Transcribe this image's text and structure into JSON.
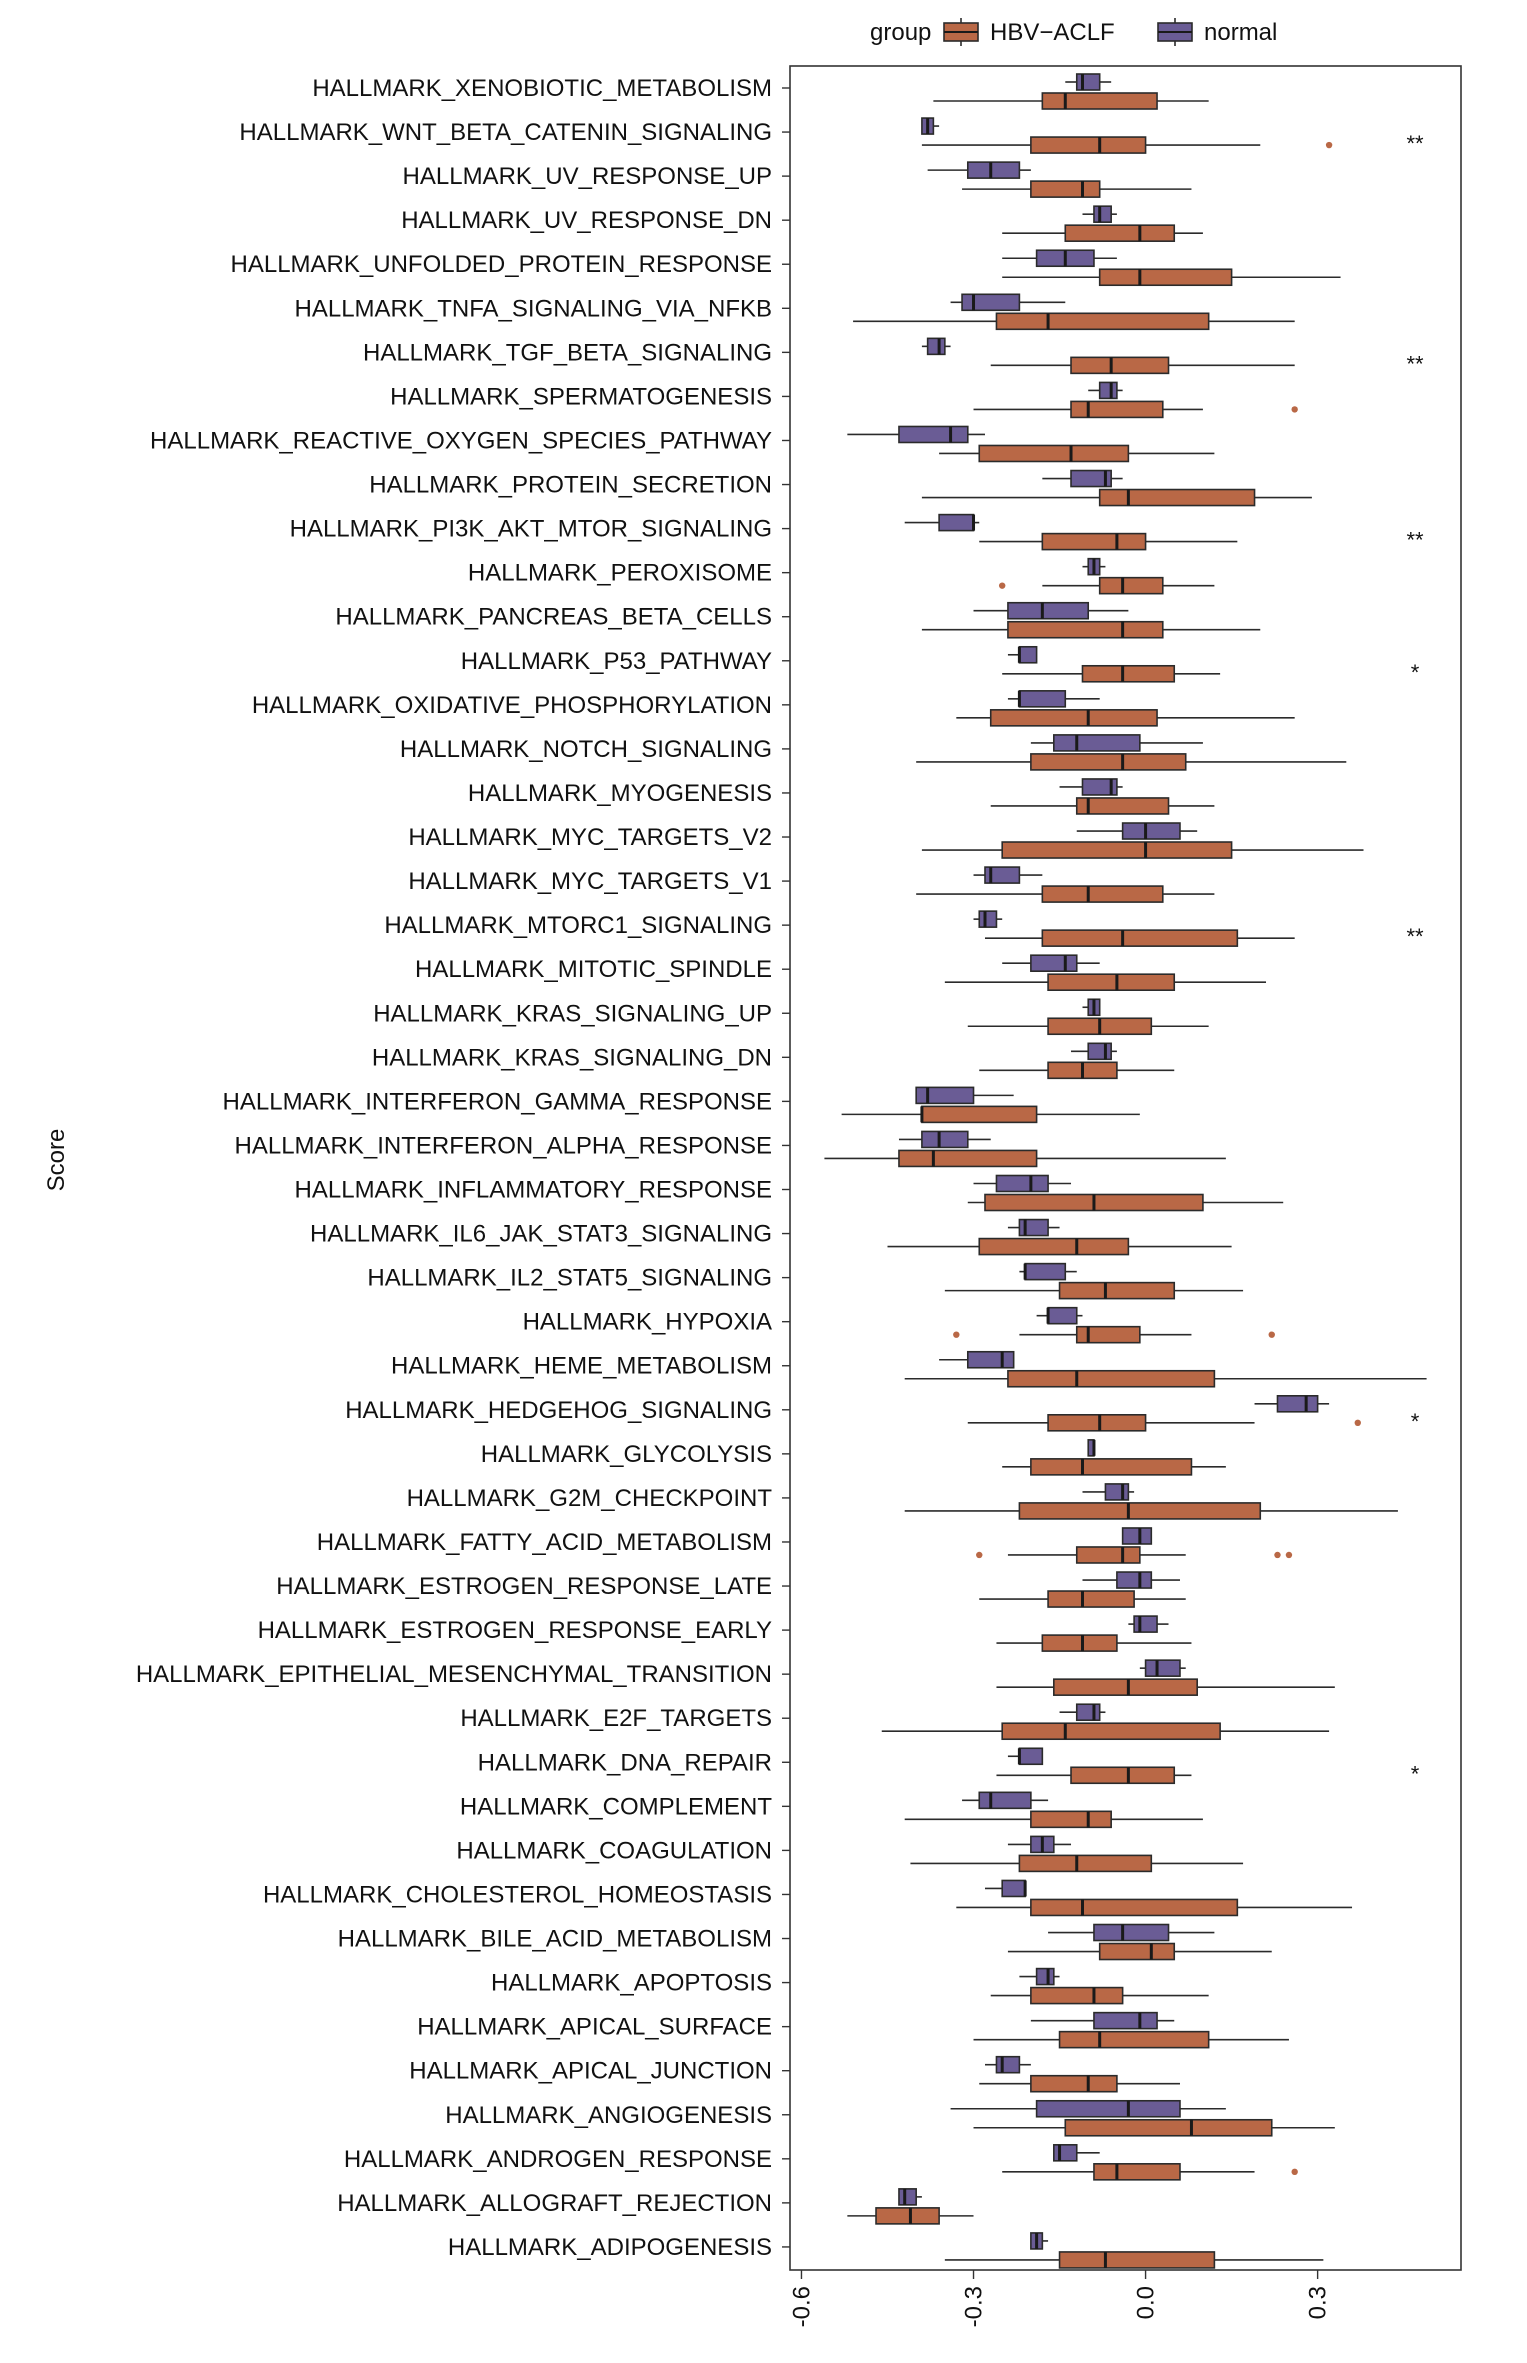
{
  "chart_data": {
    "type": "boxplot",
    "orientation": "horizontal",
    "xlabel": "Score",
    "xlim": [
      -0.62,
      0.55
    ],
    "xticks": [
      -0.6,
      -0.3,
      0.0,
      0.3
    ],
    "xtick_labels": [
      "-0.6",
      "-0.3",
      "0.0",
      "0.3"
    ],
    "legend": {
      "title": "group",
      "position": "top",
      "entries": [
        {
          "name": "HBV−ACLF",
          "color": "#b96846"
        },
        {
          "name": "normal",
          "color": "#6a5c95"
        }
      ]
    },
    "categories": [
      {
        "name": "HALLMARK_XENOBIOTIC_METABOLISM",
        "sig": "",
        "normal": [
          -0.14,
          -0.12,
          -0.11,
          -0.08,
          -0.06
        ],
        "aclf": [
          -0.37,
          -0.18,
          -0.14,
          0.02,
          0.11
        ],
        "outliers_normal": [],
        "outliers_aclf": []
      },
      {
        "name": "HALLMARK_WNT_BETA_CATENIN_SIGNALING",
        "sig": "**",
        "normal": [
          -0.39,
          -0.39,
          -0.38,
          -0.37,
          -0.36
        ],
        "aclf": [
          -0.39,
          -0.2,
          -0.08,
          0.0,
          0.2
        ],
        "outliers_normal": [],
        "outliers_aclf": [
          0.32
        ]
      },
      {
        "name": "HALLMARK_UV_RESPONSE_UP",
        "sig": "",
        "normal": [
          -0.38,
          -0.31,
          -0.27,
          -0.22,
          -0.2
        ],
        "aclf": [
          -0.32,
          -0.2,
          -0.11,
          -0.08,
          0.08
        ],
        "outliers_normal": [],
        "outliers_aclf": []
      },
      {
        "name": "HALLMARK_UV_RESPONSE_DN",
        "sig": "",
        "normal": [
          -0.11,
          -0.09,
          -0.08,
          -0.06,
          -0.05
        ],
        "aclf": [
          -0.25,
          -0.14,
          -0.01,
          0.05,
          0.1
        ],
        "outliers_normal": [],
        "outliers_aclf": []
      },
      {
        "name": "HALLMARK_UNFOLDED_PROTEIN_RESPONSE",
        "sig": "",
        "normal": [
          -0.25,
          -0.19,
          -0.14,
          -0.09,
          -0.05
        ],
        "aclf": [
          -0.25,
          -0.08,
          -0.01,
          0.15,
          0.34
        ],
        "outliers_normal": [],
        "outliers_aclf": []
      },
      {
        "name": "HALLMARK_TNFA_SIGNALING_VIA_NFKB",
        "sig": "",
        "normal": [
          -0.34,
          -0.32,
          -0.3,
          -0.22,
          -0.14
        ],
        "aclf": [
          -0.51,
          -0.26,
          -0.17,
          0.11,
          0.26
        ],
        "outliers_normal": [],
        "outliers_aclf": []
      },
      {
        "name": "HALLMARK_TGF_BETA_SIGNALING",
        "sig": "**",
        "normal": [
          -0.39,
          -0.38,
          -0.36,
          -0.35,
          -0.34
        ],
        "aclf": [
          -0.27,
          -0.13,
          -0.06,
          0.04,
          0.26
        ],
        "outliers_normal": [],
        "outliers_aclf": []
      },
      {
        "name": "HALLMARK_SPERMATOGENESIS",
        "sig": "",
        "normal": [
          -0.1,
          -0.08,
          -0.06,
          -0.05,
          -0.04
        ],
        "aclf": [
          -0.3,
          -0.13,
          -0.1,
          0.03,
          0.1
        ],
        "outliers_normal": [],
        "outliers_aclf": [
          0.26
        ]
      },
      {
        "name": "HALLMARK_REACTIVE_OXYGEN_SPECIES_PATHWAY",
        "sig": "",
        "normal": [
          -0.52,
          -0.43,
          -0.34,
          -0.31,
          -0.28
        ],
        "aclf": [
          -0.36,
          -0.29,
          -0.13,
          -0.03,
          0.12
        ],
        "outliers_normal": [],
        "outliers_aclf": []
      },
      {
        "name": "HALLMARK_PROTEIN_SECRETION",
        "sig": "",
        "normal": [
          -0.18,
          -0.13,
          -0.07,
          -0.06,
          -0.04
        ],
        "aclf": [
          -0.39,
          -0.08,
          -0.03,
          0.19,
          0.29
        ],
        "outliers_normal": [],
        "outliers_aclf": []
      },
      {
        "name": "HALLMARK_PI3K_AKT_MTOR_SIGNALING",
        "sig": "**",
        "normal": [
          -0.42,
          -0.36,
          -0.3,
          -0.3,
          -0.29
        ],
        "aclf": [
          -0.29,
          -0.18,
          -0.05,
          0.0,
          0.16
        ],
        "outliers_normal": [],
        "outliers_aclf": []
      },
      {
        "name": "HALLMARK_PEROXISOME",
        "sig": "",
        "normal": [
          -0.11,
          -0.1,
          -0.09,
          -0.08,
          -0.07
        ],
        "aclf": [
          -0.18,
          -0.08,
          -0.04,
          0.03,
          0.12
        ],
        "outliers_normal": [],
        "outliers_aclf": [
          -0.25
        ]
      },
      {
        "name": "HALLMARK_PANCREAS_BETA_CELLS",
        "sig": "",
        "normal": [
          -0.3,
          -0.24,
          -0.18,
          -0.1,
          -0.03
        ],
        "aclf": [
          -0.39,
          -0.24,
          -0.04,
          0.03,
          0.2
        ],
        "outliers_normal": [],
        "outliers_aclf": []
      },
      {
        "name": "HALLMARK_P53_PATHWAY",
        "sig": "*",
        "normal": [
          -0.24,
          -0.22,
          -0.22,
          -0.19,
          -0.19
        ],
        "aclf": [
          -0.25,
          -0.11,
          -0.04,
          0.05,
          0.13
        ],
        "outliers_normal": [],
        "outliers_aclf": []
      },
      {
        "name": "HALLMARK_OXIDATIVE_PHOSPHORYLATION",
        "sig": "",
        "normal": [
          -0.24,
          -0.22,
          -0.22,
          -0.14,
          -0.08
        ],
        "aclf": [
          -0.33,
          -0.27,
          -0.1,
          0.02,
          0.26
        ],
        "outliers_normal": [],
        "outliers_aclf": []
      },
      {
        "name": "HALLMARK_NOTCH_SIGNALING",
        "sig": "",
        "normal": [
          -0.2,
          -0.16,
          -0.12,
          -0.01,
          0.1
        ],
        "aclf": [
          -0.4,
          -0.2,
          -0.04,
          0.07,
          0.35
        ],
        "outliers_normal": [],
        "outliers_aclf": []
      },
      {
        "name": "HALLMARK_MYOGENESIS",
        "sig": "",
        "normal": [
          -0.15,
          -0.11,
          -0.06,
          -0.05,
          -0.04
        ],
        "aclf": [
          -0.27,
          -0.12,
          -0.1,
          0.04,
          0.12
        ],
        "outliers_normal": [],
        "outliers_aclf": []
      },
      {
        "name": "HALLMARK_MYC_TARGETS_V2",
        "sig": "",
        "normal": [
          -0.12,
          -0.04,
          0.0,
          0.06,
          0.09
        ],
        "aclf": [
          -0.39,
          -0.25,
          0.0,
          0.15,
          0.38
        ],
        "outliers_normal": [],
        "outliers_aclf": []
      },
      {
        "name": "HALLMARK_MYC_TARGETS_V1",
        "sig": "",
        "normal": [
          -0.3,
          -0.28,
          -0.27,
          -0.22,
          -0.18
        ],
        "aclf": [
          -0.4,
          -0.18,
          -0.1,
          0.03,
          0.12
        ],
        "outliers_normal": [],
        "outliers_aclf": []
      },
      {
        "name": "HALLMARK_MTORC1_SIGNALING",
        "sig": "**",
        "normal": [
          -0.3,
          -0.29,
          -0.28,
          -0.26,
          -0.25
        ],
        "aclf": [
          -0.28,
          -0.18,
          -0.04,
          0.16,
          0.26
        ],
        "outliers_normal": [],
        "outliers_aclf": []
      },
      {
        "name": "HALLMARK_MITOTIC_SPINDLE",
        "sig": "",
        "normal": [
          -0.25,
          -0.2,
          -0.14,
          -0.12,
          -0.08
        ],
        "aclf": [
          -0.35,
          -0.17,
          -0.05,
          0.05,
          0.21
        ],
        "outliers_normal": [],
        "outliers_aclf": []
      },
      {
        "name": "HALLMARK_KRAS_SIGNALING_UP",
        "sig": "",
        "normal": [
          -0.11,
          -0.1,
          -0.09,
          -0.08,
          -0.08
        ],
        "aclf": [
          -0.31,
          -0.17,
          -0.08,
          0.01,
          0.11
        ],
        "outliers_normal": [],
        "outliers_aclf": []
      },
      {
        "name": "HALLMARK_KRAS_SIGNALING_DN",
        "sig": "",
        "normal": [
          -0.13,
          -0.1,
          -0.07,
          -0.06,
          -0.05
        ],
        "aclf": [
          -0.29,
          -0.17,
          -0.11,
          -0.05,
          0.05
        ],
        "outliers_normal": [],
        "outliers_aclf": []
      },
      {
        "name": "HALLMARK_INTERFERON_GAMMA_RESPONSE",
        "sig": "",
        "normal": [
          -0.4,
          -0.4,
          -0.38,
          -0.3,
          -0.23
        ],
        "aclf": [
          -0.53,
          -0.39,
          -0.39,
          -0.19,
          -0.01
        ],
        "outliers_normal": [],
        "outliers_aclf": []
      },
      {
        "name": "HALLMARK_INTERFERON_ALPHA_RESPONSE",
        "sig": "",
        "normal": [
          -0.43,
          -0.39,
          -0.36,
          -0.31,
          -0.27
        ],
        "aclf": [
          -0.56,
          -0.43,
          -0.37,
          -0.19,
          0.14
        ],
        "outliers_normal": [],
        "outliers_aclf": []
      },
      {
        "name": "HALLMARK_INFLAMMATORY_RESPONSE",
        "sig": "",
        "normal": [
          -0.3,
          -0.26,
          -0.2,
          -0.17,
          -0.13
        ],
        "aclf": [
          -0.31,
          -0.28,
          -0.09,
          0.1,
          0.24
        ],
        "outliers_normal": [],
        "outliers_aclf": []
      },
      {
        "name": "HALLMARK_IL6_JAK_STAT3_SIGNALING",
        "sig": "",
        "normal": [
          -0.24,
          -0.22,
          -0.21,
          -0.17,
          -0.15
        ],
        "aclf": [
          -0.45,
          -0.29,
          -0.12,
          -0.03,
          0.15
        ],
        "outliers_normal": [],
        "outliers_aclf": []
      },
      {
        "name": "HALLMARK_IL2_STAT5_SIGNALING",
        "sig": "",
        "normal": [
          -0.22,
          -0.21,
          -0.21,
          -0.14,
          -0.12
        ],
        "aclf": [
          -0.35,
          -0.15,
          -0.07,
          0.05,
          0.17
        ],
        "outliers_normal": [],
        "outliers_aclf": []
      },
      {
        "name": "HALLMARK_HYPOXIA",
        "sig": "",
        "normal": [
          -0.19,
          -0.17,
          -0.17,
          -0.12,
          -0.11
        ],
        "aclf": [
          -0.22,
          -0.12,
          -0.1,
          -0.01,
          0.08
        ],
        "outliers_normal": [],
        "outliers_aclf": [
          -0.33,
          0.22
        ]
      },
      {
        "name": "HALLMARK_HEME_METABOLISM",
        "sig": "",
        "normal": [
          -0.36,
          -0.31,
          -0.25,
          -0.23,
          -0.23
        ],
        "aclf": [
          -0.42,
          -0.24,
          -0.12,
          0.12,
          0.49
        ],
        "outliers_normal": [],
        "outliers_aclf": []
      },
      {
        "name": "HALLMARK_HEDGEHOG_SIGNALING",
        "sig": "*",
        "normal": [
          0.19,
          0.23,
          0.28,
          0.3,
          0.32
        ],
        "aclf": [
          -0.31,
          -0.17,
          -0.08,
          0.0,
          0.19
        ],
        "outliers_normal": [],
        "outliers_aclf": [
          0.37
        ]
      },
      {
        "name": "HALLMARK_GLYCOLYSIS",
        "sig": "",
        "normal": [
          -0.1,
          -0.1,
          -0.09,
          -0.09,
          -0.09
        ],
        "aclf": [
          -0.25,
          -0.2,
          -0.11,
          0.08,
          0.14
        ],
        "outliers_normal": [],
        "outliers_aclf": []
      },
      {
        "name": "HALLMARK_G2M_CHECKPOINT",
        "sig": "",
        "normal": [
          -0.11,
          -0.07,
          -0.04,
          -0.03,
          -0.02
        ],
        "aclf": [
          -0.42,
          -0.22,
          -0.03,
          0.2,
          0.44
        ],
        "outliers_normal": [],
        "outliers_aclf": []
      },
      {
        "name": "HALLMARK_FATTY_ACID_METABOLISM",
        "sig": "",
        "normal": [
          -0.04,
          -0.04,
          -0.01,
          0.01,
          0.01
        ],
        "aclf": [
          -0.24,
          -0.12,
          -0.04,
          -0.01,
          0.07
        ],
        "outliers_normal": [],
        "outliers_aclf": [
          -0.29,
          0.23,
          0.25
        ]
      },
      {
        "name": "HALLMARK_ESTROGEN_RESPONSE_LATE",
        "sig": "",
        "normal": [
          -0.11,
          -0.05,
          -0.01,
          0.01,
          0.06
        ],
        "aclf": [
          -0.29,
          -0.17,
          -0.11,
          -0.02,
          0.07
        ],
        "outliers_normal": [],
        "outliers_aclf": []
      },
      {
        "name": "HALLMARK_ESTROGEN_RESPONSE_EARLY",
        "sig": "",
        "normal": [
          -0.03,
          -0.02,
          -0.01,
          0.02,
          0.04
        ],
        "aclf": [
          -0.26,
          -0.18,
          -0.11,
          -0.05,
          0.08
        ],
        "outliers_normal": [],
        "outliers_aclf": []
      },
      {
        "name": "HALLMARK_EPITHELIAL_MESENCHYMAL_TRANSITION",
        "sig": "",
        "normal": [
          -0.01,
          0.0,
          0.02,
          0.06,
          0.07
        ],
        "aclf": [
          -0.26,
          -0.16,
          -0.03,
          0.09,
          0.33
        ],
        "outliers_normal": [],
        "outliers_aclf": []
      },
      {
        "name": "HALLMARK_E2F_TARGETS",
        "sig": "",
        "normal": [
          -0.15,
          -0.12,
          -0.09,
          -0.08,
          -0.07
        ],
        "aclf": [
          -0.46,
          -0.25,
          -0.14,
          0.13,
          0.32
        ],
        "outliers_normal": [],
        "outliers_aclf": []
      },
      {
        "name": "HALLMARK_DNA_REPAIR",
        "sig": "*",
        "normal": [
          -0.24,
          -0.22,
          -0.22,
          -0.18,
          -0.18
        ],
        "aclf": [
          -0.26,
          -0.13,
          -0.03,
          0.05,
          0.08
        ],
        "outliers_normal": [],
        "outliers_aclf": []
      },
      {
        "name": "HALLMARK_COMPLEMENT",
        "sig": "",
        "normal": [
          -0.32,
          -0.29,
          -0.27,
          -0.2,
          -0.17
        ],
        "aclf": [
          -0.42,
          -0.2,
          -0.1,
          -0.06,
          0.1
        ],
        "outliers_normal": [],
        "outliers_aclf": []
      },
      {
        "name": "HALLMARK_COAGULATION",
        "sig": "",
        "normal": [
          -0.24,
          -0.2,
          -0.18,
          -0.16,
          -0.13
        ],
        "aclf": [
          -0.41,
          -0.22,
          -0.12,
          0.01,
          0.17
        ],
        "outliers_normal": [],
        "outliers_aclf": []
      },
      {
        "name": "HALLMARK_CHOLESTEROL_HOMEOSTASIS",
        "sig": "",
        "normal": [
          -0.28,
          -0.25,
          -0.21,
          -0.21,
          -0.21
        ],
        "aclf": [
          -0.33,
          -0.2,
          -0.11,
          0.16,
          0.36
        ],
        "outliers_normal": [],
        "outliers_aclf": []
      },
      {
        "name": "HALLMARK_BILE_ACID_METABOLISM",
        "sig": "",
        "normal": [
          -0.17,
          -0.09,
          -0.04,
          0.04,
          0.12
        ],
        "aclf": [
          -0.24,
          -0.08,
          0.01,
          0.05,
          0.22
        ],
        "outliers_normal": [],
        "outliers_aclf": []
      },
      {
        "name": "HALLMARK_APOPTOSIS",
        "sig": "",
        "normal": [
          -0.22,
          -0.19,
          -0.17,
          -0.16,
          -0.15
        ],
        "aclf": [
          -0.27,
          -0.2,
          -0.09,
          -0.04,
          0.11
        ],
        "outliers_normal": [],
        "outliers_aclf": []
      },
      {
        "name": "HALLMARK_APICAL_SURFACE",
        "sig": "",
        "normal": [
          -0.2,
          -0.09,
          -0.01,
          0.02,
          0.05
        ],
        "aclf": [
          -0.3,
          -0.15,
          -0.08,
          0.11,
          0.25
        ],
        "outliers_normal": [],
        "outliers_aclf": []
      },
      {
        "name": "HALLMARK_APICAL_JUNCTION",
        "sig": "",
        "normal": [
          -0.28,
          -0.26,
          -0.25,
          -0.22,
          -0.2
        ],
        "aclf": [
          -0.29,
          -0.2,
          -0.1,
          -0.05,
          0.06
        ],
        "outliers_normal": [],
        "outliers_aclf": []
      },
      {
        "name": "HALLMARK_ANGIOGENESIS",
        "sig": "",
        "normal": [
          -0.34,
          -0.19,
          -0.03,
          0.06,
          0.14
        ],
        "aclf": [
          -0.3,
          -0.14,
          0.08,
          0.22,
          0.33
        ],
        "outliers_normal": [],
        "outliers_aclf": []
      },
      {
        "name": "HALLMARK_ANDROGEN_RESPONSE",
        "sig": "",
        "normal": [
          -0.16,
          -0.16,
          -0.15,
          -0.12,
          -0.08
        ],
        "aclf": [
          -0.25,
          -0.09,
          -0.05,
          0.06,
          0.19
        ],
        "outliers_normal": [],
        "outliers_aclf": [
          0.26
        ]
      },
      {
        "name": "HALLMARK_ALLOGRAFT_REJECTION",
        "sig": "",
        "normal": [
          -0.43,
          -0.43,
          -0.42,
          -0.4,
          -0.39
        ],
        "aclf": [
          -0.52,
          -0.47,
          -0.41,
          -0.36,
          -0.3
        ],
        "outliers_normal": [],
        "outliers_aclf": []
      },
      {
        "name": "HALLMARK_ADIPOGENESIS",
        "sig": "",
        "normal": [
          -0.2,
          -0.2,
          -0.19,
          -0.18,
          -0.17
        ],
        "aclf": [
          -0.35,
          -0.15,
          -0.07,
          0.12,
          0.31
        ],
        "outliers_normal": [],
        "outliers_aclf": []
      }
    ]
  }
}
